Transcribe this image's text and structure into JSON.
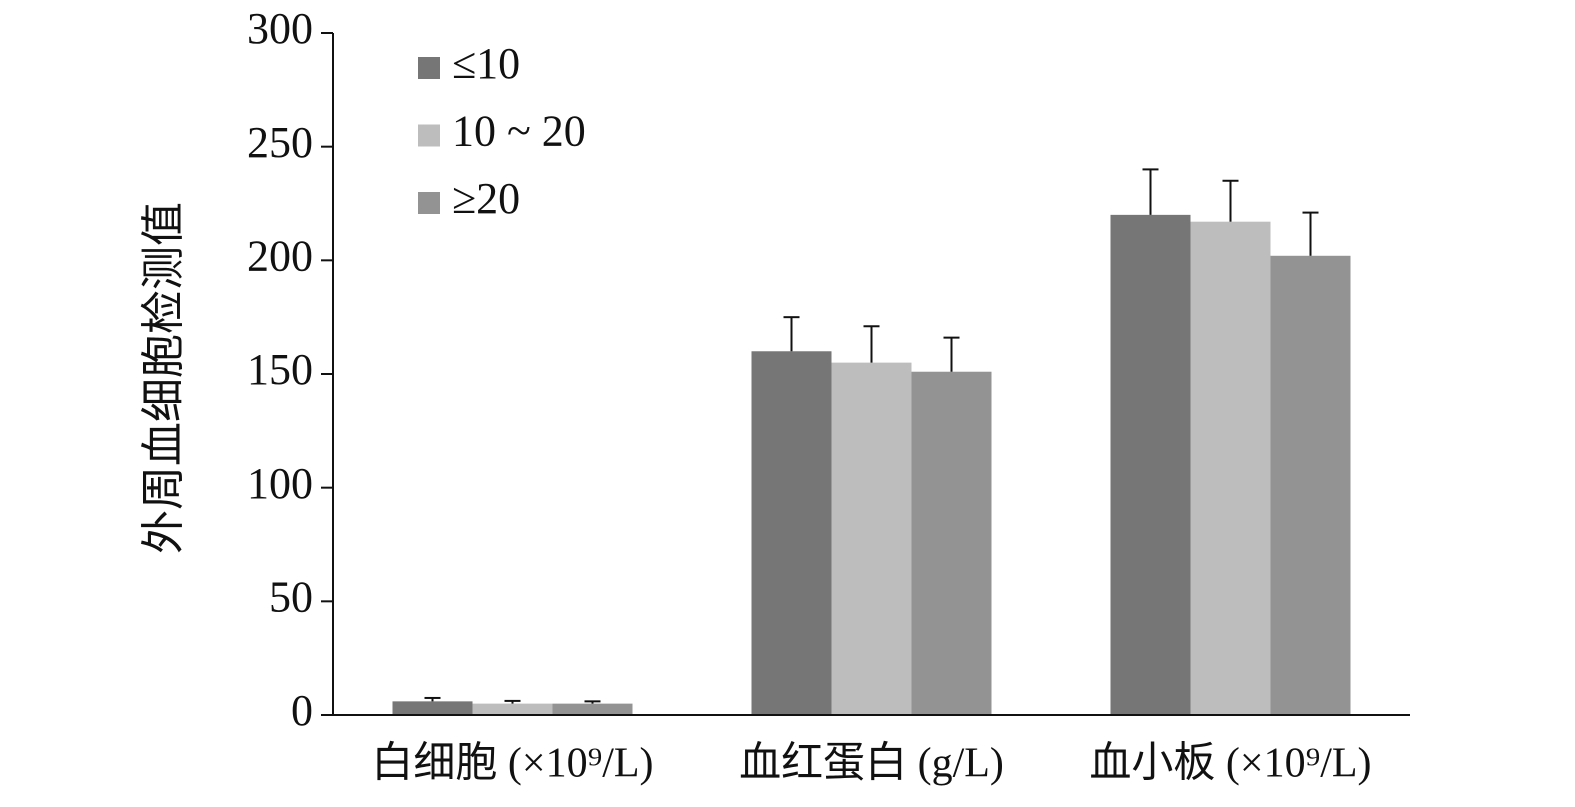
{
  "chart_data": {
    "type": "bar",
    "y_label": "外周血细胞检测值",
    "categories": [
      "白细胞 (×10⁹/L)",
      "血红蛋白 (g/L)",
      "血小板 (×10⁹/L)"
    ],
    "series": [
      {
        "name": "≤10",
        "color": "#767676",
        "values": [
          6,
          160,
          220
        ],
        "errors": [
          1.5,
          15,
          20
        ]
      },
      {
        "name": "10 ~ 20",
        "color": "#bdbdbd",
        "values": [
          5,
          155,
          217
        ],
        "errors": [
          1.2,
          16,
          18
        ]
      },
      {
        "name": "≥20",
        "color": "#939393",
        "values": [
          5,
          151,
          202
        ],
        "errors": [
          1,
          15,
          19
        ]
      }
    ],
    "ylim": [
      0,
      300
    ],
    "yticks": [
      0,
      50,
      100,
      150,
      200,
      250,
      300
    ]
  }
}
